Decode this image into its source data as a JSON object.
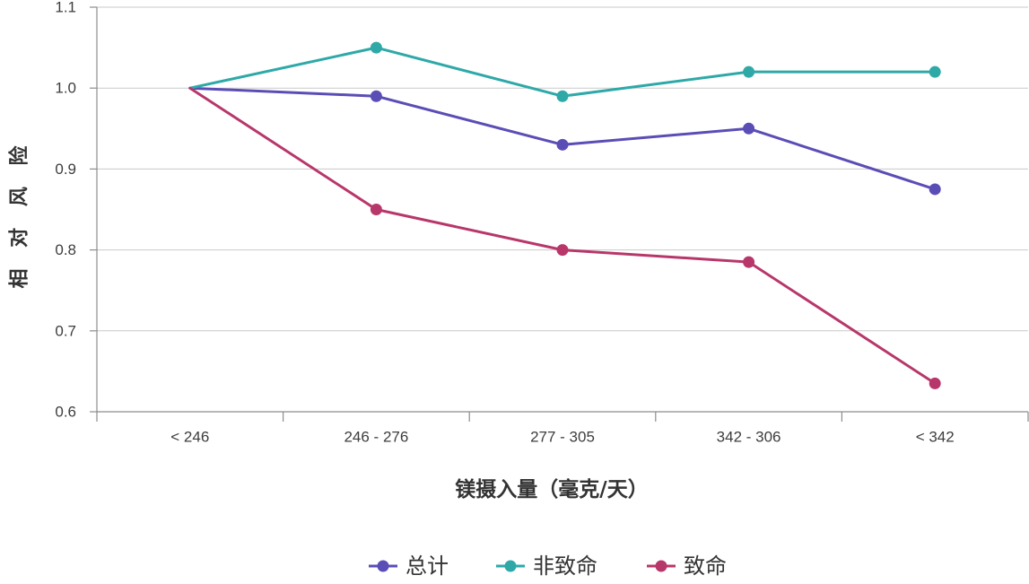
{
  "chart_data": {
    "type": "line",
    "categories": [
      "< 246",
      "246 - 276",
      "277 - 305",
      "342 - 306",
      "< 342"
    ],
    "series": [
      {
        "name": "总计",
        "color": "#5b4db6",
        "values": [
          1.0,
          0.99,
          0.93,
          0.95,
          0.875
        ]
      },
      {
        "name": "非致命",
        "color": "#2ea9a8",
        "values": [
          1.0,
          1.05,
          0.99,
          1.02,
          1.02
        ]
      },
      {
        "name": "致命",
        "color": "#b8376b",
        "values": [
          1.0,
          0.85,
          0.8,
          0.785,
          0.635
        ]
      }
    ],
    "xlabel": "镁摄入量（毫克/天）",
    "ylabel": "相 对 风 险",
    "ylim": [
      0.6,
      1.1
    ],
    "yticks": [
      "0.6",
      "0.7",
      "0.8",
      "0.9",
      "1.0",
      "1.1"
    ],
    "grid": true,
    "legend": "bottom"
  }
}
